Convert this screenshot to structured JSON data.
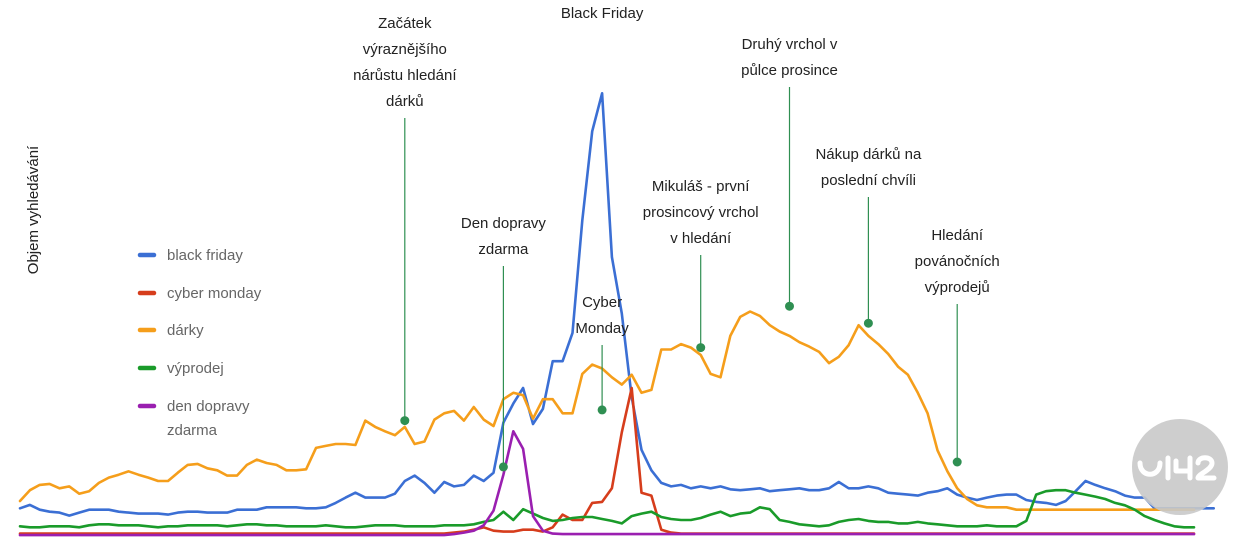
{
  "chart_data": {
    "type": "line",
    "title": "",
    "xlabel": "",
    "ylabel": "Objem vyhledávání",
    "grid": false,
    "legend_position": "left",
    "x_count": 120,
    "ylim": [
      0,
      100
    ],
    "series": [
      {
        "name": "black friday",
        "color": "#3b6fd4",
        "values": [
          5.9,
          6.6,
          5.6,
          5.2,
          5,
          4.4,
          5,
          5.6,
          5.6,
          5.6,
          5.2,
          5,
          4.8,
          4.8,
          4.8,
          4.6,
          5,
          5.2,
          5.2,
          5,
          5,
          5,
          5.6,
          5.6,
          5.6,
          6.1,
          6.1,
          6.1,
          6.1,
          5.9,
          5.9,
          6.1,
          7,
          8.1,
          9.1,
          8.1,
          8.1,
          8.1,
          8.9,
          11.5,
          12.6,
          11.1,
          9.1,
          11.3,
          10.4,
          10.7,
          12.6,
          11.5,
          13.2,
          23.5,
          27.4,
          30.6,
          23.2,
          26.3,
          36.1,
          36.1,
          41.9,
          65,
          83.3,
          91.1,
          57.5,
          45.9,
          28.7,
          17.9,
          13.7,
          11.1,
          10.4,
          10.7,
          10,
          10.4,
          10,
          10.4,
          9.8,
          9.6,
          9.8,
          10,
          9.4,
          9.6,
          9.8,
          10,
          9.6,
          9.6,
          10,
          11.3,
          10,
          10,
          10.4,
          10,
          9.1,
          8.9,
          8.7,
          8.5,
          9.1,
          9.4,
          10,
          8.7,
          8.1,
          7.6,
          8.1,
          8.5,
          8.7,
          8.7,
          7.6,
          7.2,
          7,
          6.6,
          7.4,
          9.4,
          11.5,
          10.7,
          10,
          9.4,
          8.5,
          8.1,
          8.1,
          5.9,
          5.9,
          5.9,
          5.9,
          5.9,
          5.9,
          5.9
        ]
      },
      {
        "name": "cyber monday",
        "color": "#d63d1c",
        "values": [
          0.7,
          0.7,
          0.7,
          0.7,
          0.7,
          0.7,
          0.7,
          0.7,
          0.7,
          0.7,
          0.7,
          0.7,
          0.7,
          0.7,
          0.7,
          0.7,
          0.7,
          0.7,
          0.7,
          0.7,
          0.7,
          0.7,
          0.7,
          0.7,
          0.7,
          0.7,
          0.7,
          0.7,
          0.7,
          0.7,
          0.7,
          0.7,
          0.7,
          0.7,
          0.7,
          0.7,
          0.7,
          0.7,
          0.7,
          0.7,
          0.7,
          0.7,
          0.7,
          0.7,
          0.9,
          1.1,
          1.5,
          2,
          1.3,
          1.1,
          1.1,
          1.5,
          1.5,
          1.1,
          2,
          4.6,
          3.5,
          3.5,
          7,
          7.2,
          10,
          21.5,
          30.6,
          9.1,
          8.5,
          1.5,
          0.9,
          0.7,
          0.7,
          0.7,
          0.7,
          0.7,
          0.7,
          0.7,
          0.7,
          0.7,
          0.7,
          0.7,
          0.7,
          0.7,
          0.7,
          0.7,
          0.7,
          0.7,
          0.7,
          0.7,
          0.7,
          0.7,
          0.7,
          0.7,
          0.7,
          0.7,
          0.7,
          0.7,
          0.7,
          0.7,
          0.7,
          0.7,
          0.7,
          0.7,
          0.7,
          0.7,
          0.7,
          0.7,
          0.7,
          0.7,
          0.7,
          0.7,
          0.7,
          0.7,
          0.7,
          0.7,
          0.7,
          0.7,
          0.7,
          0.7,
          0.7,
          0.7,
          0.7,
          0.7
        ]
      },
      {
        "name": "dárky",
        "color": "#f59e1b",
        "values": [
          7.4,
          9.6,
          10.7,
          10.9,
          10,
          10.4,
          8.9,
          9.4,
          11.1,
          12.2,
          12.8,
          13.5,
          12.8,
          12.2,
          11.5,
          11.5,
          13.2,
          14.8,
          15,
          14.1,
          13.7,
          12.6,
          12.6,
          14.8,
          15.9,
          15.2,
          14.8,
          13.7,
          13.7,
          13.9,
          18.3,
          18.7,
          19.1,
          19.1,
          18.9,
          23.9,
          22.6,
          21.7,
          20.9,
          22.6,
          19.1,
          19.6,
          24.1,
          25.4,
          25.9,
          23.9,
          26.7,
          24.1,
          22.8,
          28.3,
          29.6,
          29.1,
          24.3,
          28.3,
          28.3,
          25.4,
          25.4,
          33.5,
          35.4,
          34.6,
          32.8,
          31.3,
          33.3,
          29.6,
          30.2,
          38.5,
          38.5,
          39.6,
          38.9,
          37.4,
          33.5,
          32.8,
          41.3,
          45.2,
          46.3,
          45.4,
          43.5,
          42.2,
          41.3,
          40,
          39.1,
          38,
          35.7,
          37,
          39.4,
          43.5,
          41.3,
          39.6,
          37.6,
          35,
          33.3,
          29.6,
          25.4,
          17.8,
          13.5,
          10,
          7.8,
          6.5,
          6.1,
          6.1,
          6.1,
          5.6,
          5.6,
          5.6,
          5.6,
          5.6,
          5.6,
          5.6,
          5.6,
          5.6,
          5.6,
          5.6,
          5.6,
          5.6,
          5.6,
          5.6,
          5.6,
          5.6,
          5.6,
          5.6
        ]
      },
      {
        "name": "výprodej",
        "color": "#1a9b2a",
        "values": [
          2.2,
          2,
          2,
          2.2,
          2.2,
          2.2,
          2,
          2.4,
          2.6,
          2.6,
          2.4,
          2.4,
          2.4,
          2.2,
          2,
          2.2,
          2.2,
          2.4,
          2.4,
          2.4,
          2.4,
          2.2,
          2.4,
          2.6,
          2.6,
          2.4,
          2.4,
          2.2,
          2.2,
          2.2,
          2.2,
          2.4,
          2.2,
          2,
          2,
          2.2,
          2.4,
          2.4,
          2.4,
          2.2,
          2.2,
          2.2,
          2.2,
          2.4,
          2.4,
          2.4,
          2.6,
          3.1,
          3.5,
          5.2,
          3.5,
          5.7,
          4.8,
          3.9,
          3.3,
          3.5,
          3.9,
          4.1,
          4.1,
          3.7,
          3.3,
          2.8,
          4.3,
          4.8,
          5.2,
          4.1,
          3.7,
          3.5,
          3.5,
          3.9,
          4.6,
          5.2,
          4.3,
          4.8,
          5,
          6.1,
          5.7,
          3.5,
          3.1,
          2.6,
          2.4,
          2.2,
          2.4,
          3.1,
          3.5,
          3.7,
          3.3,
          3.1,
          3.1,
          2.8,
          2.8,
          3.1,
          2.8,
          2.6,
          2.4,
          2.2,
          2.2,
          2.2,
          2.4,
          2.2,
          2.2,
          2.2,
          3.3,
          8.7,
          9.4,
          9.6,
          9.6,
          9.1,
          8.7,
          8.3,
          7.8,
          7,
          6.5,
          5.6,
          4.3,
          3.5,
          2.8,
          2.2,
          2,
          2
        ]
      },
      {
        "name": "den dopravy zdarma",
        "color": "#9a1fb0",
        "values": [
          0.4,
          0.4,
          0.4,
          0.4,
          0.4,
          0.4,
          0.4,
          0.4,
          0.4,
          0.4,
          0.4,
          0.4,
          0.4,
          0.4,
          0.4,
          0.4,
          0.4,
          0.4,
          0.4,
          0.4,
          0.4,
          0.4,
          0.4,
          0.4,
          0.4,
          0.4,
          0.4,
          0.4,
          0.4,
          0.4,
          0.4,
          0.4,
          0.4,
          0.4,
          0.4,
          0.4,
          0.4,
          0.4,
          0.4,
          0.4,
          0.4,
          0.4,
          0.4,
          0.4,
          0.6,
          0.9,
          1.3,
          2.4,
          5.4,
          12.8,
          21.7,
          18.1,
          4.3,
          1.3,
          0.7,
          0.6,
          0.6,
          0.6,
          0.6,
          0.6,
          0.6,
          0.6,
          0.6,
          0.6,
          0.6,
          0.6,
          0.6,
          0.6,
          0.6,
          0.6,
          0.6,
          0.6,
          0.6,
          0.6,
          0.6,
          0.6,
          0.6,
          0.6,
          0.6,
          0.6,
          0.6,
          0.6,
          0.6,
          0.6,
          0.6,
          0.6,
          0.6,
          0.6,
          0.6,
          0.6,
          0.6,
          0.6,
          0.6,
          0.6,
          0.6,
          0.6,
          0.6,
          0.6,
          0.6,
          0.6,
          0.6,
          0.6,
          0.6,
          0.6,
          0.6,
          0.6,
          0.6,
          0.6,
          0.6,
          0.6,
          0.6,
          0.6,
          0.6,
          0.6,
          0.6,
          0.6,
          0.6,
          0.6,
          0.6,
          0.6
        ]
      }
    ],
    "annotations": [
      {
        "lines": [
          "Začátek",
          "výraznějšího",
          "nárůstu hledání",
          "dárků"
        ],
        "x_index": 39,
        "value": 23.9
      },
      {
        "lines": [
          "Den dopravy",
          "zdarma"
        ],
        "x_index": 49,
        "value": 14.4
      },
      {
        "lines": [
          "Black Friday"
        ],
        "x_index": 59,
        "value": 100
      },
      {
        "lines": [
          "Cyber",
          "Monday"
        ],
        "x_index": 59,
        "value": 26.1
      },
      {
        "lines": [
          "Mikuláš - první",
          "prosincový vrchol",
          "v hledání"
        ],
        "x_index": 69,
        "value": 38.9
      },
      {
        "lines": [
          "Druhý vrchol v",
          "půlce prosince"
        ],
        "x_index": 78,
        "value": 47.4
      },
      {
        "lines": [
          "Nákup dárků na",
          "poslední chvíli"
        ],
        "x_index": 86,
        "value": 43.9
      },
      {
        "lines": [
          "Hledání",
          "povánočních",
          "výprodejů"
        ],
        "x_index": 95,
        "value": 15.4
      }
    ],
    "watermark": "vi42"
  }
}
